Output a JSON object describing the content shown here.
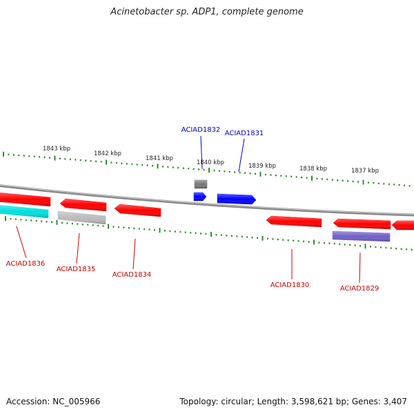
{
  "title": "Acinetobacter sp. ADP1, complete genome",
  "footer": {
    "accession": "Accession: NC_005966",
    "summary": "Topology: circular; Length: 3,598,621 bp; Genes: 3,407"
  },
  "tick_labels": [
    "1843 kbp",
    "1842 kbp",
    "1841 kbp",
    "1840 kbp",
    "1839 kbp",
    "1838 kbp",
    "1837 kbp"
  ],
  "colors": {
    "backbone": "#8a8a8a",
    "tick": "#2e8b2e",
    "forward_label": "#0000cc",
    "reverse_label": "#cc0000"
  },
  "genes": [
    {
      "id": "ACIAD1836",
      "color": "#ff0000",
      "strand": "reverse"
    },
    {
      "id": "ACIAD1836-rna",
      "color": "#00e0e0",
      "strand": "reverse",
      "label": null
    },
    {
      "id": "ACIAD1835",
      "color": "#ff0000",
      "strand": "reverse"
    },
    {
      "id": "ACIAD1835-pseudo",
      "color": "#bbbbbb",
      "strand": "reverse",
      "label": null
    },
    {
      "id": "ACIAD1834",
      "color": "#ff0000",
      "strand": "reverse"
    },
    {
      "id": "ACIAD1832",
      "color": "#0000ff",
      "strand": "forward"
    },
    {
      "id": "ACIAD1832-pseudo",
      "color": "#777777",
      "strand": "forward",
      "label": null
    },
    {
      "id": "ACIAD1831",
      "color": "#0000ff",
      "strand": "forward"
    },
    {
      "id": "ACIAD1830",
      "color": "#ff0000",
      "strand": "reverse"
    },
    {
      "id": "ACIAD1829",
      "color": "#ff0000",
      "strand": "reverse"
    },
    {
      "id": "ACIAD1829-other",
      "color": "#7060c8",
      "strand": "reverse",
      "label": null
    },
    {
      "id": "ACIAD1828",
      "color": "#ff0000",
      "strand": "reverse",
      "label": null
    }
  ],
  "gene_labels": [
    {
      "text": "ACIAD1836",
      "strand": "reverse"
    },
    {
      "text": "ACIAD1835",
      "strand": "reverse"
    },
    {
      "text": "ACIAD1834",
      "strand": "reverse"
    },
    {
      "text": "ACIAD1832",
      "strand": "forward"
    },
    {
      "text": "ACIAD1831",
      "strand": "forward"
    },
    {
      "text": "ACIAD1830",
      "strand": "reverse"
    },
    {
      "text": "ACIAD1829",
      "strand": "reverse"
    }
  ]
}
